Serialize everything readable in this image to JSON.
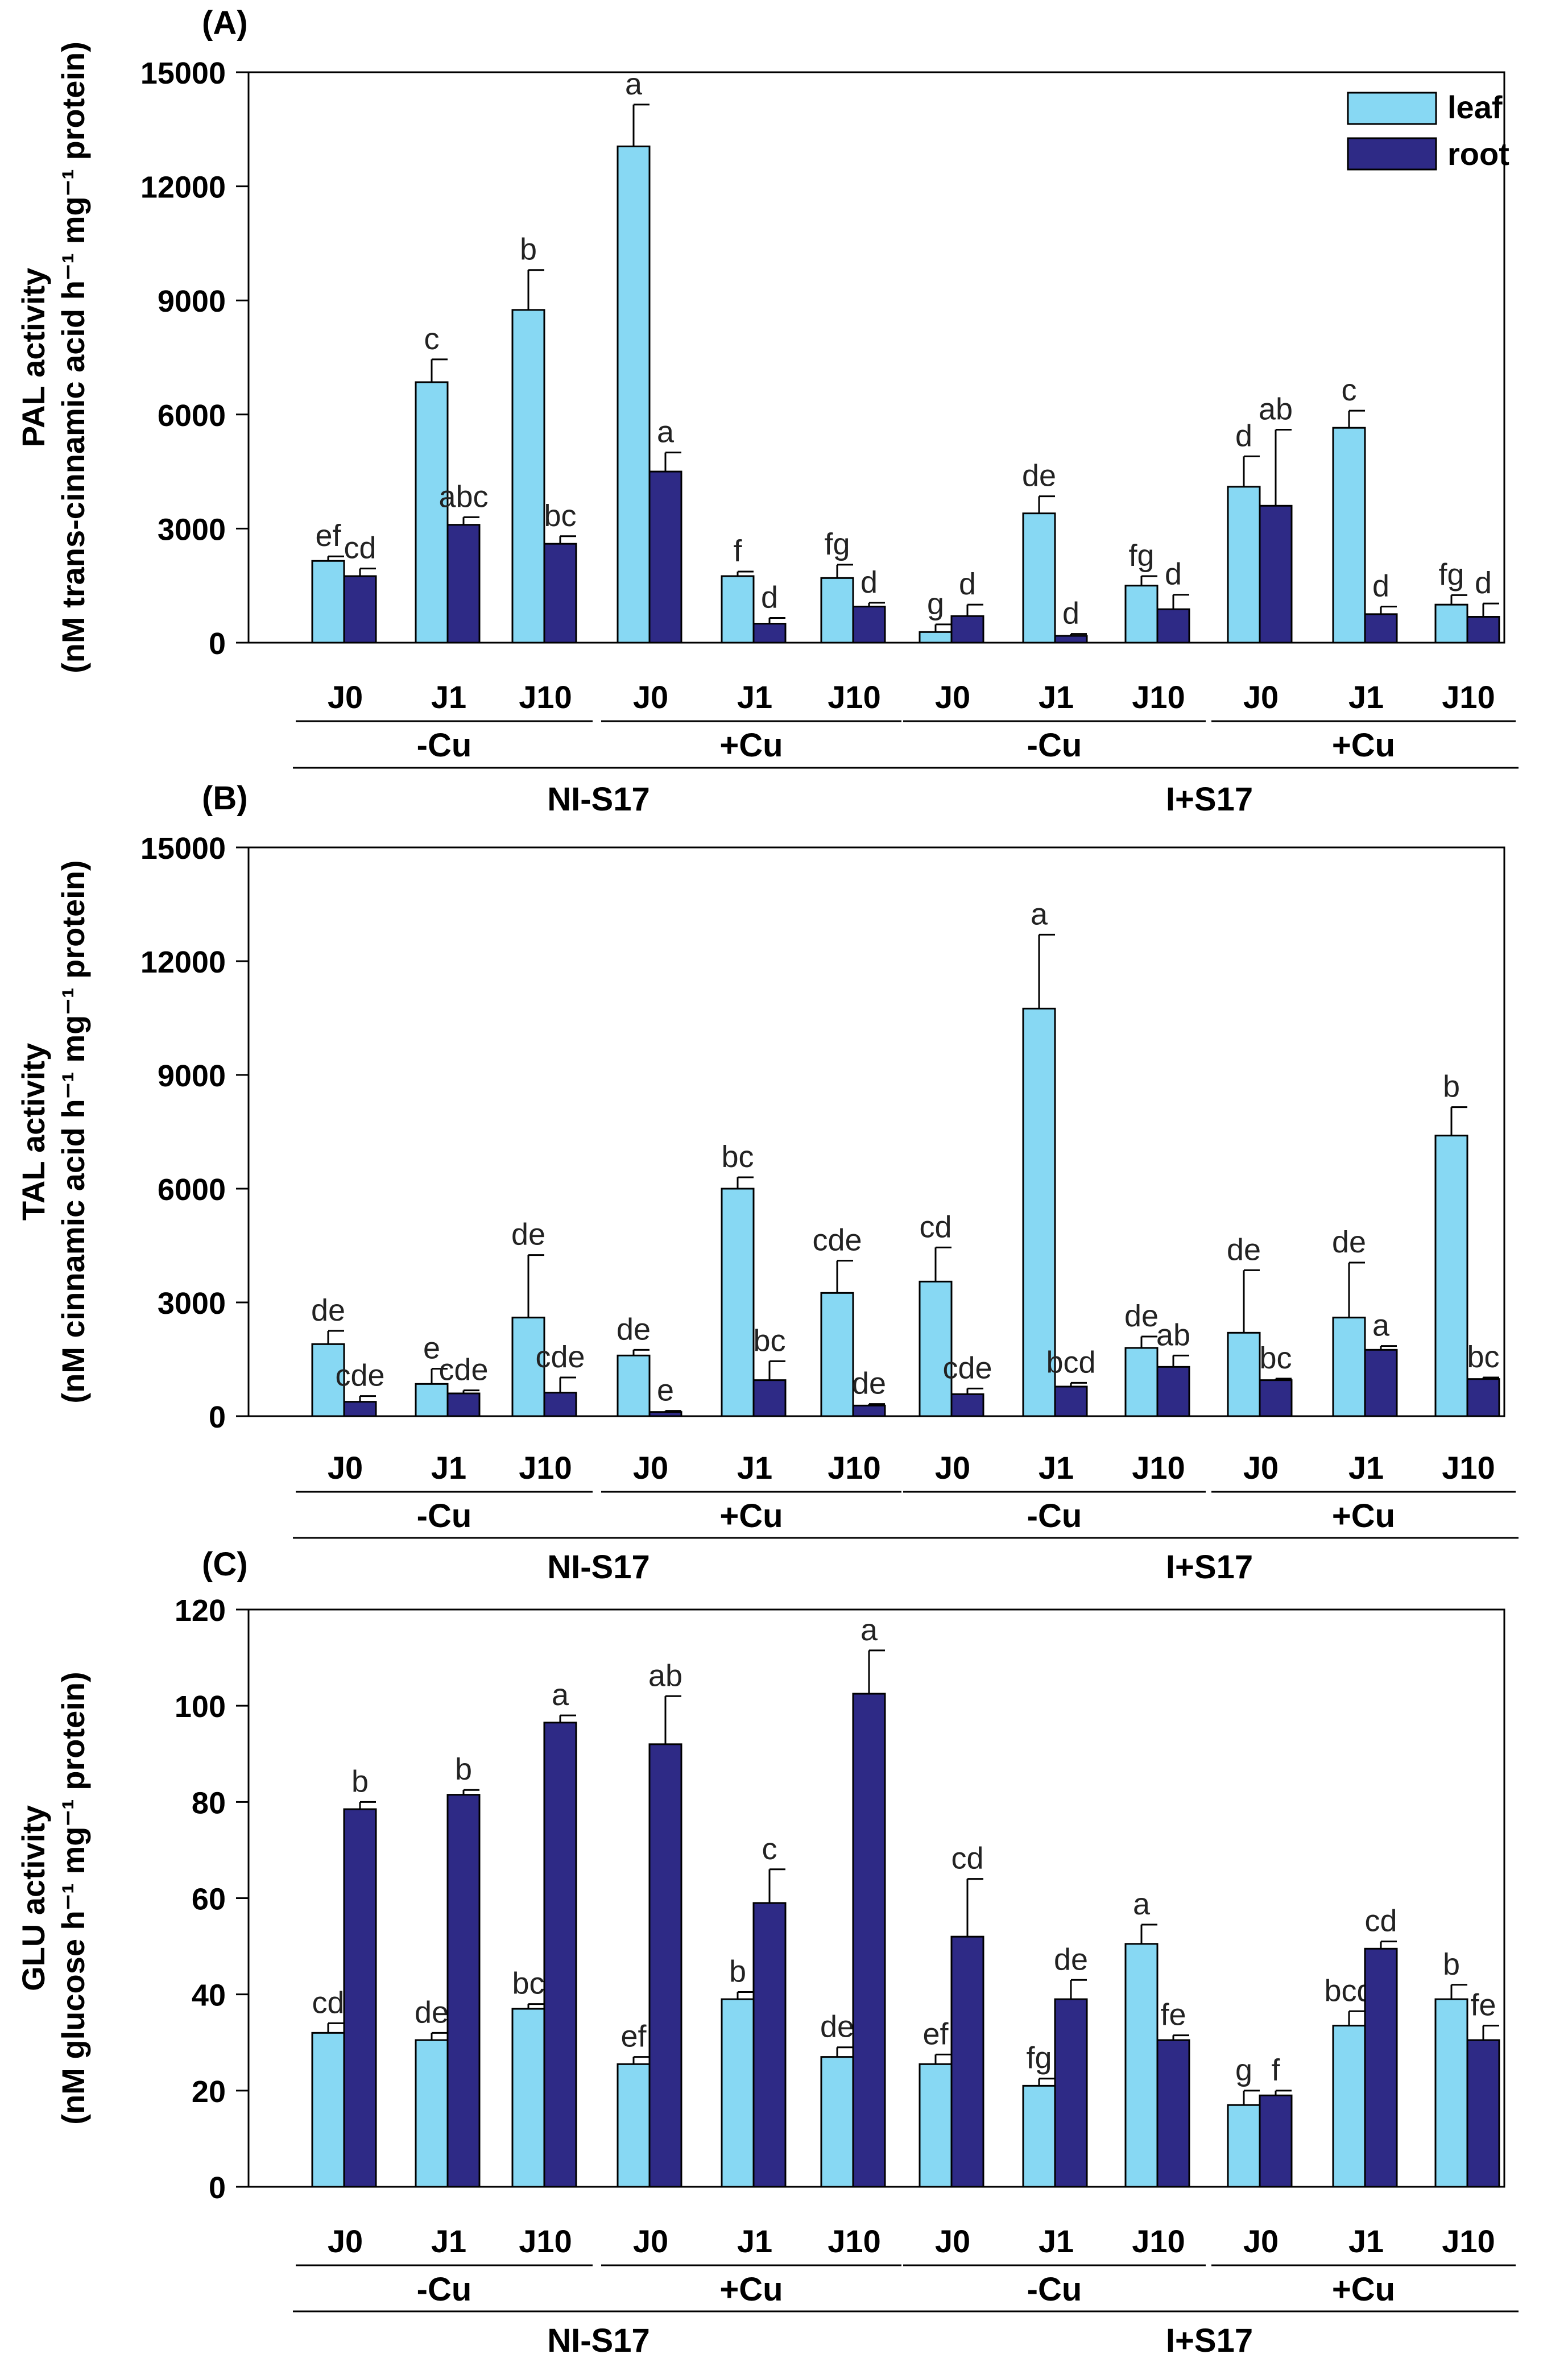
{
  "colors": {
    "leaf": "#87D8F3",
    "root": "#2E2A86",
    "axis": "#000000"
  },
  "legend": {
    "leaf": "leaf",
    "root": "root"
  },
  "x_labels": {
    "days": [
      "J0",
      "J1",
      "J10",
      "J0",
      "J1",
      "J10",
      "J0",
      "J1",
      "J10",
      "J0",
      "J1",
      "J10"
    ],
    "cu": [
      "-Cu",
      "+Cu",
      "-Cu",
      "+Cu"
    ],
    "treatment": [
      "NI-S17",
      "I+S17"
    ]
  },
  "chart_data": [
    {
      "type": "bar",
      "panel": "(A)",
      "ylabel_line1": "PAL activity",
      "ylabel_line2": "(nM trans-cinnamic acid h⁻¹ mg⁻¹ protein)",
      "ylim": [
        0,
        15000
      ],
      "yticks": [
        "0",
        "3000",
        "6000",
        "9000",
        "12000",
        "15000"
      ],
      "categories": [
        "NI-S17 -Cu J0",
        "NI-S17 -Cu J1",
        "NI-S17 -Cu J10",
        "NI-S17 +Cu J0",
        "NI-S17 +Cu J1",
        "NI-S17 +Cu J10",
        "I+S17 -Cu J0",
        "I+S17 -Cu J1",
        "I+S17 -Cu J10",
        "I+S17 +Cu J0",
        "I+S17 +Cu J1",
        "I+S17 +Cu J10"
      ],
      "series": [
        {
          "name": "leaf",
          "values": [
            2150,
            6850,
            8750,
            13050,
            1750,
            1700,
            280,
            3400,
            1500,
            4100,
            5650,
            1000
          ],
          "errors": [
            120,
            600,
            1050,
            1100,
            120,
            350,
            200,
            450,
            250,
            800,
            450,
            250
          ],
          "letters": [
            "ef",
            "c",
            "b",
            "a",
            "f",
            "fg",
            "g",
            "de",
            "fg",
            "d",
            "c",
            "fg"
          ]
        },
        {
          "name": "root",
          "values": [
            1750,
            3100,
            2600,
            4500,
            500,
            950,
            700,
            180,
            880,
            3600,
            750,
            680
          ],
          "errors": [
            200,
            200,
            200,
            500,
            150,
            100,
            300,
            50,
            380,
            2000,
            200,
            350
          ],
          "letters": [
            "cd",
            "abc",
            "bc",
            "a",
            "d",
            "d",
            "d",
            "d",
            "d",
            "ab",
            "d",
            "d"
          ]
        }
      ]
    },
    {
      "type": "bar",
      "panel": "(B)",
      "ylabel_line1": "TAL activity",
      "ylabel_line2": "(nM cinnamic acid h⁻¹ mg⁻¹ protein)",
      "ylim": [
        0,
        15000
      ],
      "yticks": [
        "0",
        "3000",
        "6000",
        "9000",
        "12000",
        "15000"
      ],
      "categories": [
        "NI-S17 -Cu J0",
        "NI-S17 -Cu J1",
        "NI-S17 -Cu J10",
        "NI-S17 +Cu J0",
        "NI-S17 +Cu J1",
        "NI-S17 +Cu J10",
        "I+S17 -Cu J0",
        "I+S17 -Cu J1",
        "I+S17 -Cu J10",
        "I+S17 +Cu J0",
        "I+S17 +Cu J1",
        "I+S17 +Cu J10"
      ],
      "series": [
        {
          "name": "leaf",
          "values": [
            1900,
            850,
            2600,
            1600,
            6000,
            3250,
            3550,
            10750,
            1800,
            2200,
            2600,
            7400
          ],
          "errors": [
            350,
            400,
            1650,
            150,
            300,
            850,
            900,
            1950,
            300,
            1650,
            1450,
            750
          ],
          "letters": [
            "de",
            "e",
            "de",
            "de",
            "bc",
            "cde",
            "cd",
            "a",
            "de",
            "de",
            "de",
            "b"
          ]
        },
        {
          "name": "root",
          "values": [
            380,
            600,
            620,
            110,
            950,
            280,
            580,
            780,
            1300,
            950,
            1750,
            980
          ],
          "errors": [
            150,
            80,
            400,
            30,
            500,
            40,
            150,
            100,
            300,
            40,
            100,
            40
          ],
          "letters": [
            "cde",
            "cde",
            "cde",
            "e",
            "bc",
            "de",
            "cde",
            "bcd",
            "ab",
            "bc",
            "a",
            "bc"
          ]
        }
      ]
    },
    {
      "type": "bar",
      "panel": "(C)",
      "ylabel_line1": "GLU activity",
      "ylabel_line2": "(nM glucose h⁻¹ mg⁻¹ protein)",
      "ylim": [
        0,
        120
      ],
      "yticks": [
        "0",
        "20",
        "40",
        "60",
        "80",
        "100",
        "120"
      ],
      "categories": [
        "NI-S17 -Cu J0",
        "NI-S17 -Cu J1",
        "NI-S17 -Cu J10",
        "NI-S17 +Cu J0",
        "NI-S17 +Cu J1",
        "NI-S17 +Cu J10",
        "I+S17 -Cu J0",
        "I+S17 -Cu J1",
        "I+S17 -Cu J10",
        "I+S17 +Cu J0",
        "I+S17 +Cu J1",
        "I+S17 +Cu J10"
      ],
      "series": [
        {
          "name": "leaf",
          "values": [
            32,
            30.5,
            37,
            25.5,
            39,
            27,
            25.5,
            21,
            50.5,
            17,
            33.5,
            39
          ],
          "errors": [
            2,
            1.5,
            1,
            1.5,
            1.5,
            2,
            2,
            1.5,
            4,
            3,
            3,
            3
          ],
          "letters": [
            "cd",
            "de",
            "bc",
            "ef",
            "b",
            "de",
            "ef",
            "fg",
            "a",
            "g",
            "bcd",
            "b"
          ]
        },
        {
          "name": "root",
          "values": [
            78.5,
            81.5,
            96.5,
            92,
            59,
            102.5,
            52,
            39,
            30.5,
            19,
            49.5,
            30.5
          ],
          "errors": [
            1.5,
            1,
            1.5,
            10,
            7,
            9,
            12,
            4,
            1,
            1,
            1.5,
            3
          ],
          "letters": [
            "b",
            "b",
            "a",
            "ab",
            "c",
            "a",
            "cd",
            "de",
            "fe",
            "f",
            "cd",
            "fe"
          ]
        }
      ]
    }
  ]
}
